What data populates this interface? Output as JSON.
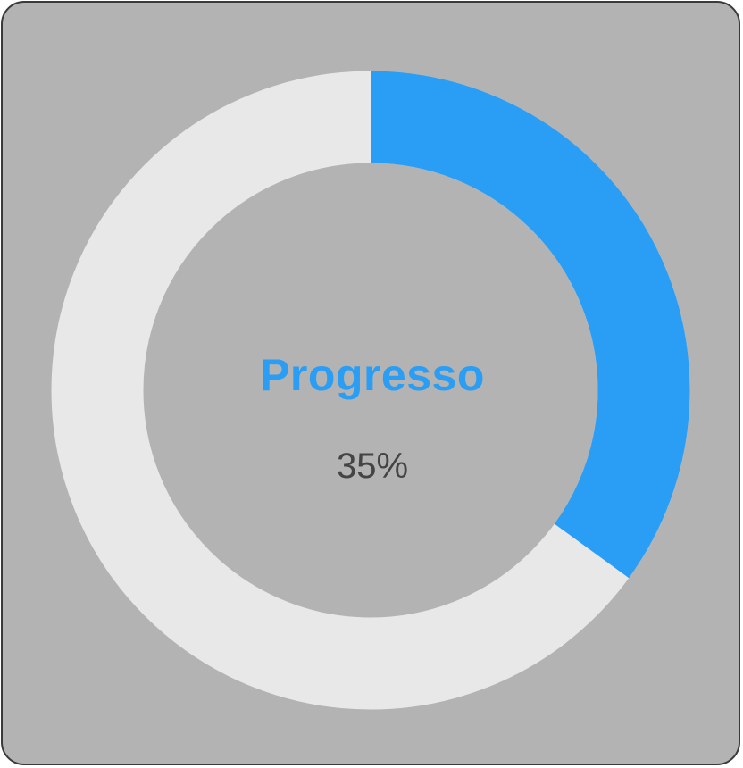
{
  "progress": {
    "title": "Progresso",
    "value_text": "35%",
    "value": 0.35
  },
  "colors": {
    "card_background": "#b3b3b3",
    "track": "#e8e8e8",
    "fill": "#2a9df4",
    "title": "#2a9df4",
    "value_text": "#444444",
    "border": "#3a3a3a"
  }
}
